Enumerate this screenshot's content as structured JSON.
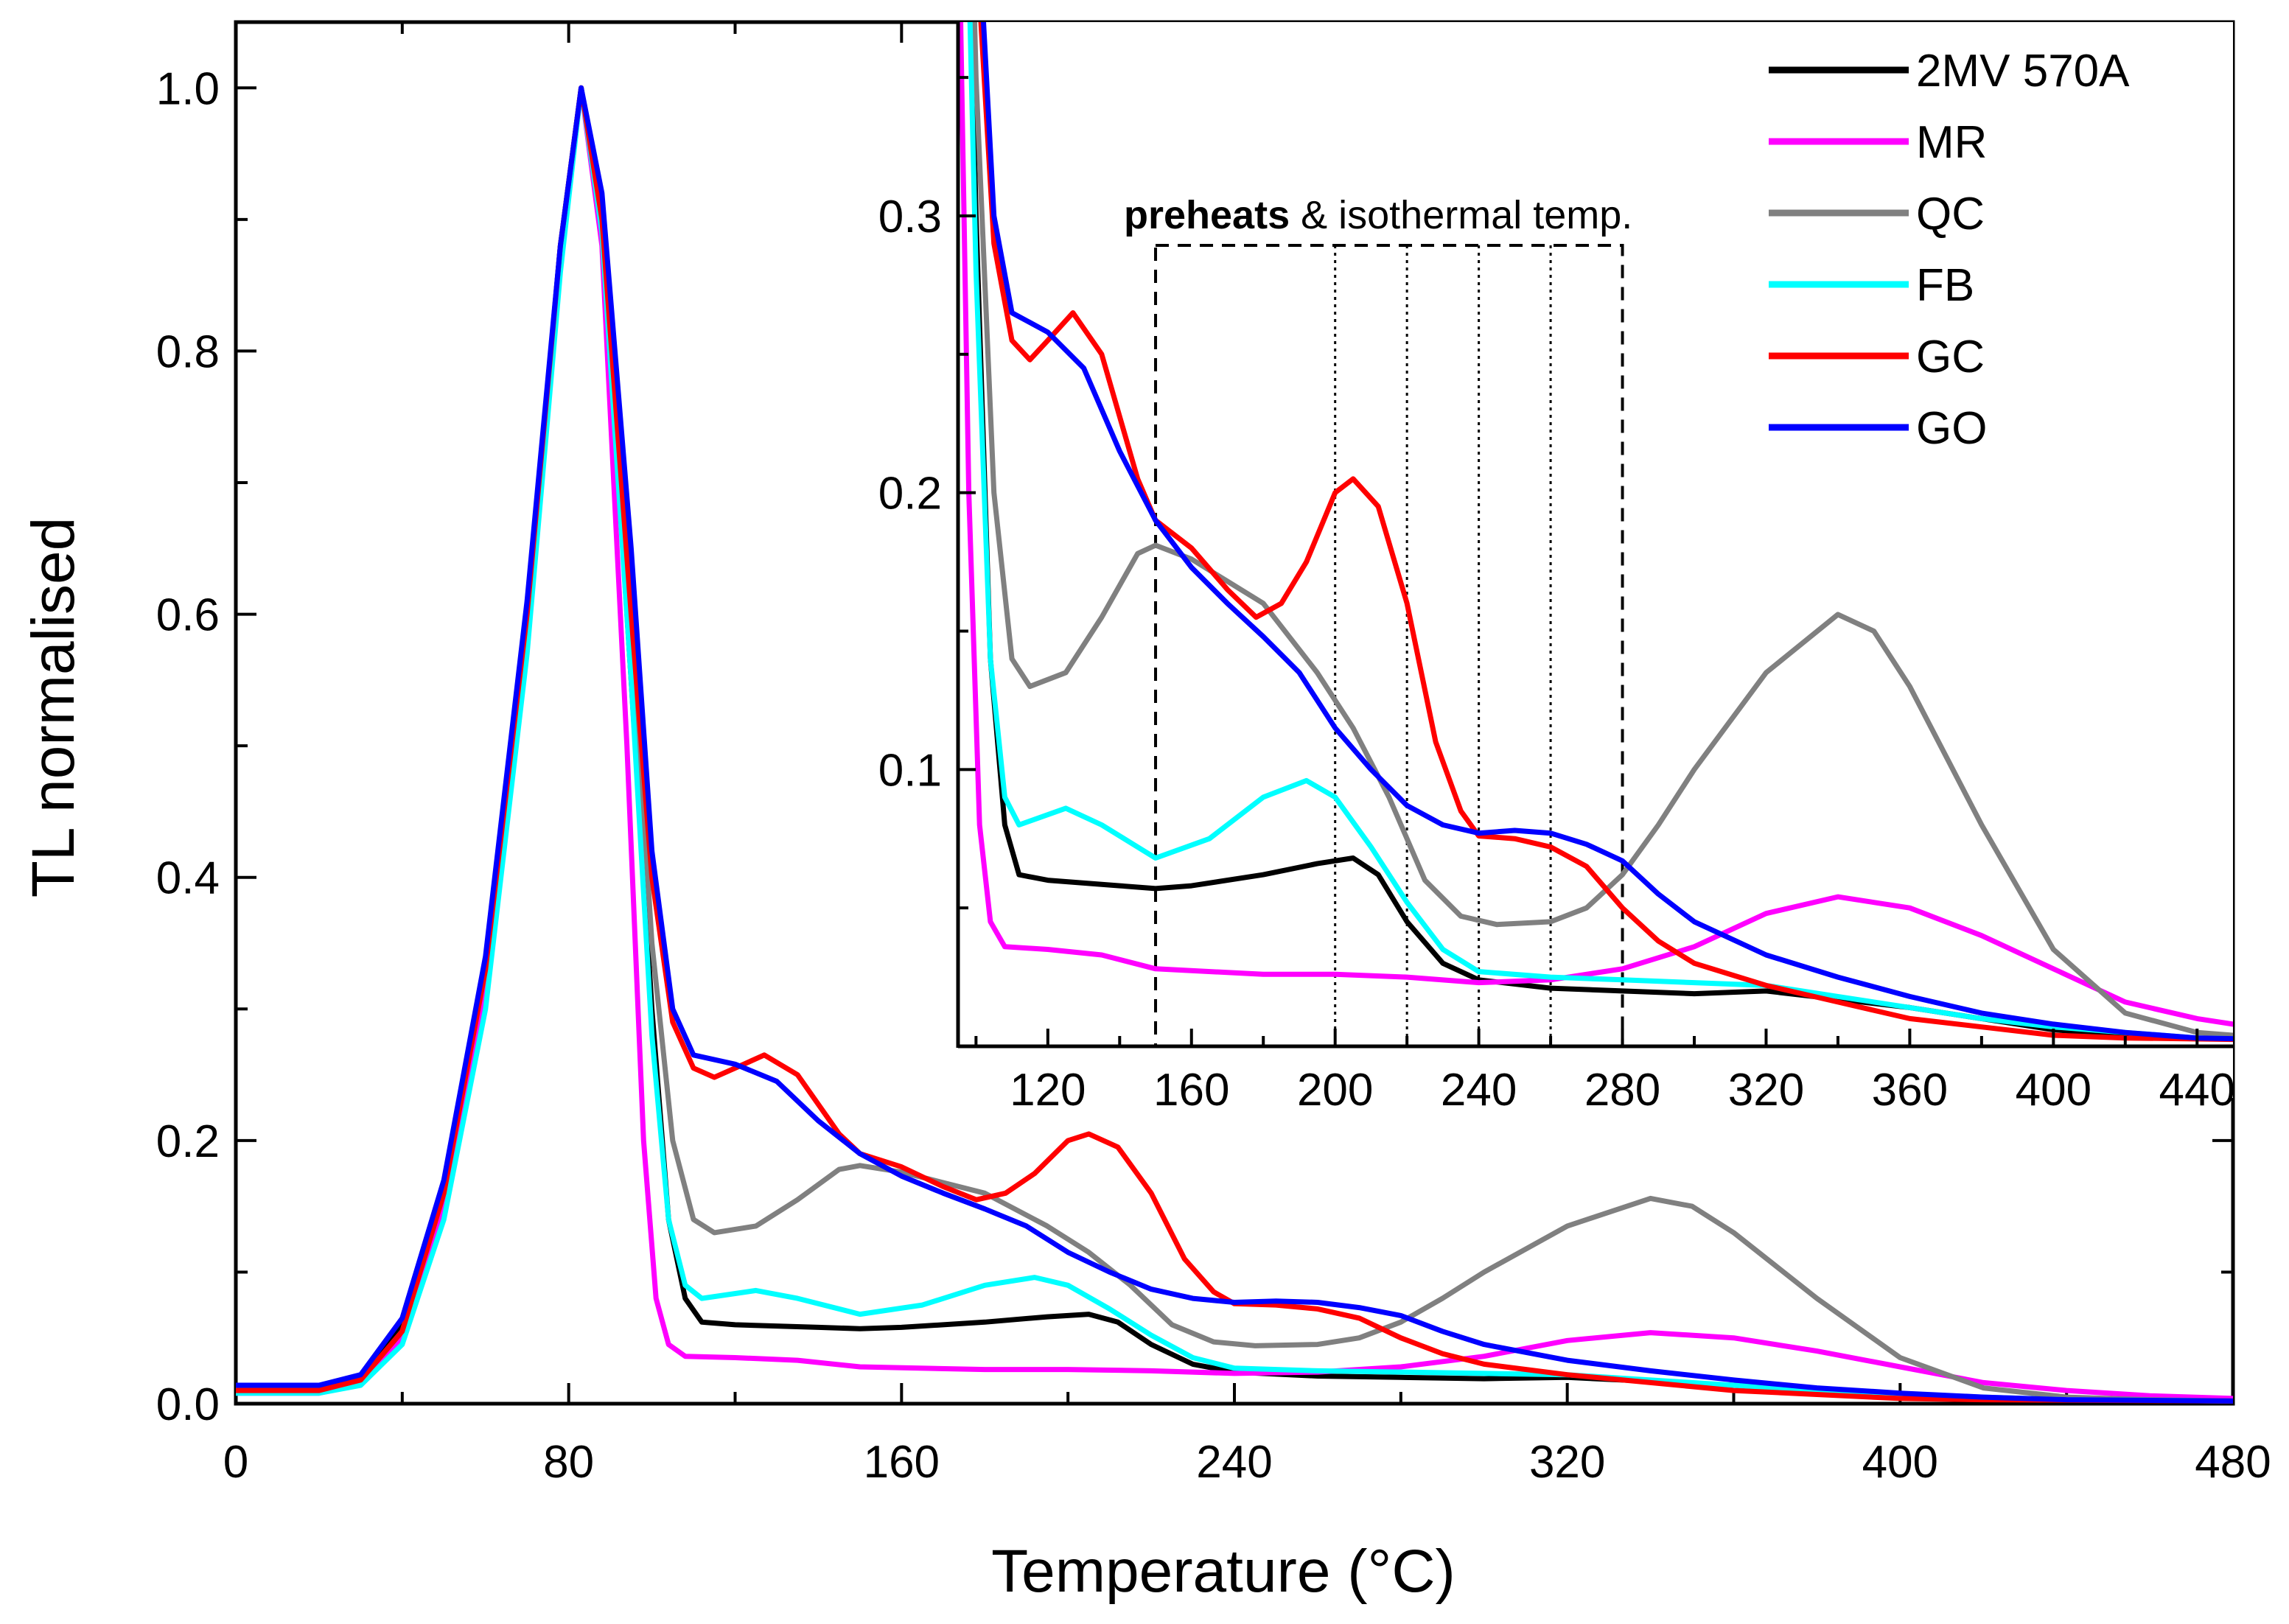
{
  "chart_data": [
    {
      "id": "main",
      "type": "line",
      "xlabel": "Temperature (°C)",
      "ylabel": "TL normalised",
      "xlim": [
        0,
        480
      ],
      "ylim": [
        0,
        1.05
      ],
      "xticks": [
        0,
        80,
        160,
        240,
        320,
        400,
        480
      ],
      "yticks": [
        0.0,
        0.2,
        0.4,
        0.6,
        0.8,
        1.0
      ],
      "ytick_labels": [
        "0.0",
        "0.2",
        "0.4",
        "0.6",
        "0.8",
        "1.0"
      ],
      "series": [
        {
          "name": "2MV 570A",
          "color": "#000000",
          "points": [
            [
              0,
              0.012
            ],
            [
              20,
              0.012
            ],
            [
              30,
              0.02
            ],
            [
              40,
              0.06
            ],
            [
              50,
              0.16
            ],
            [
              60,
              0.33
            ],
            [
              70,
              0.6
            ],
            [
              78,
              0.88
            ],
            [
              83,
              1.0
            ],
            [
              88,
              0.9
            ],
            [
              95,
              0.55
            ],
            [
              100,
              0.3
            ],
            [
              104,
              0.14
            ],
            [
              108,
              0.08
            ],
            [
              112,
              0.062
            ],
            [
              120,
              0.06
            ],
            [
              140,
              0.058
            ],
            [
              150,
              0.057
            ],
            [
              160,
              0.058
            ],
            [
              180,
              0.062
            ],
            [
              195,
              0.066
            ],
            [
              205,
              0.068
            ],
            [
              212,
              0.062
            ],
            [
              220,
              0.045
            ],
            [
              230,
              0.03
            ],
            [
              240,
              0.024
            ],
            [
              260,
              0.021
            ],
            [
              280,
              0.02
            ],
            [
              300,
              0.019
            ],
            [
              320,
              0.02
            ],
            [
              340,
              0.017
            ],
            [
              360,
              0.014
            ],
            [
              380,
              0.01
            ],
            [
              400,
              0.006
            ],
            [
              420,
              0.004
            ],
            [
              440,
              0.003
            ],
            [
              480,
              0.002
            ]
          ]
        },
        {
          "name": "MR",
          "color": "#ff00ff",
          "points": [
            [
              0,
              0.008
            ],
            [
              20,
              0.008
            ],
            [
              30,
              0.015
            ],
            [
              40,
              0.05
            ],
            [
              50,
              0.15
            ],
            [
              60,
              0.32
            ],
            [
              70,
              0.59
            ],
            [
              78,
              0.87
            ],
            [
              83,
              1.0
            ],
            [
              88,
              0.88
            ],
            [
              94,
              0.5
            ],
            [
              98,
              0.2
            ],
            [
              101,
              0.08
            ],
            [
              104,
              0.045
            ],
            [
              108,
              0.036
            ],
            [
              120,
              0.035
            ],
            [
              135,
              0.033
            ],
            [
              150,
              0.028
            ],
            [
              180,
              0.026
            ],
            [
              200,
              0.026
            ],
            [
              220,
              0.025
            ],
            [
              240,
              0.023
            ],
            [
              260,
              0.024
            ],
            [
              280,
              0.028
            ],
            [
              300,
              0.036
            ],
            [
              320,
              0.048
            ],
            [
              340,
              0.054
            ],
            [
              360,
              0.05
            ],
            [
              380,
              0.04
            ],
            [
              400,
              0.028
            ],
            [
              420,
              0.016
            ],
            [
              440,
              0.01
            ],
            [
              460,
              0.006
            ],
            [
              480,
              0.004
            ]
          ]
        },
        {
          "name": "QC",
          "color": "#808080",
          "points": [
            [
              0,
              0.01
            ],
            [
              20,
              0.01
            ],
            [
              30,
              0.018
            ],
            [
              40,
              0.055
            ],
            [
              50,
              0.16
            ],
            [
              60,
              0.33
            ],
            [
              70,
              0.6
            ],
            [
              78,
              0.88
            ],
            [
              83,
              1.0
            ],
            [
              88,
              0.9
            ],
            [
              95,
              0.6
            ],
            [
              100,
              0.35
            ],
            [
              105,
              0.2
            ],
            [
              110,
              0.14
            ],
            [
              115,
              0.13
            ],
            [
              125,
              0.135
            ],
            [
              135,
              0.155
            ],
            [
              145,
              0.178
            ],
            [
              150,
              0.181
            ],
            [
              160,
              0.176
            ],
            [
              170,
              0.168
            ],
            [
              180,
              0.16
            ],
            [
              195,
              0.135
            ],
            [
              205,
              0.115
            ],
            [
              215,
              0.09
            ],
            [
              225,
              0.06
            ],
            [
              235,
              0.047
            ],
            [
              245,
              0.044
            ],
            [
              260,
              0.045
            ],
            [
              270,
              0.05
            ],
            [
              280,
              0.062
            ],
            [
              290,
              0.08
            ],
            [
              300,
              0.1
            ],
            [
              320,
              0.135
            ],
            [
              340,
              0.156
            ],
            [
              350,
              0.15
            ],
            [
              360,
              0.13
            ],
            [
              380,
              0.08
            ],
            [
              400,
              0.035
            ],
            [
              420,
              0.012
            ],
            [
              440,
              0.005
            ],
            [
              460,
              0.003
            ],
            [
              480,
              0.002
            ]
          ]
        },
        {
          "name": "FB",
          "color": "#00ffff",
          "points": [
            [
              0,
              0.008
            ],
            [
              20,
              0.008
            ],
            [
              30,
              0.014
            ],
            [
              40,
              0.045
            ],
            [
              50,
              0.14
            ],
            [
              60,
              0.3
            ],
            [
              70,
              0.57
            ],
            [
              78,
              0.86
            ],
            [
              83,
              1.0
            ],
            [
              88,
              0.89
            ],
            [
              95,
              0.55
            ],
            [
              100,
              0.28
            ],
            [
              104,
              0.14
            ],
            [
              108,
              0.09
            ],
            [
              112,
              0.08
            ],
            [
              125,
              0.086
            ],
            [
              135,
              0.08
            ],
            [
              150,
              0.068
            ],
            [
              165,
              0.075
            ],
            [
              180,
              0.09
            ],
            [
              192,
              0.096
            ],
            [
              200,
              0.09
            ],
            [
              210,
              0.072
            ],
            [
              220,
              0.052
            ],
            [
              230,
              0.035
            ],
            [
              240,
              0.027
            ],
            [
              260,
              0.025
            ],
            [
              280,
              0.024
            ],
            [
              300,
              0.023
            ],
            [
              320,
              0.022
            ],
            [
              340,
              0.018
            ],
            [
              360,
              0.014
            ],
            [
              380,
              0.01
            ],
            [
              400,
              0.007
            ],
            [
              420,
              0.005
            ],
            [
              440,
              0.003
            ],
            [
              480,
              0.002
            ]
          ]
        },
        {
          "name": "GC",
          "color": "#ff0000",
          "points": [
            [
              0,
              0.01
            ],
            [
              20,
              0.01
            ],
            [
              30,
              0.018
            ],
            [
              40,
              0.055
            ],
            [
              50,
              0.16
            ],
            [
              60,
              0.33
            ],
            [
              70,
              0.6
            ],
            [
              78,
              0.88
            ],
            [
              83,
              1.0
            ],
            [
              88,
              0.9
            ],
            [
              95,
              0.6
            ],
            [
              100,
              0.4
            ],
            [
              105,
              0.29
            ],
            [
              110,
              0.255
            ],
            [
              115,
              0.248
            ],
            [
              120,
              0.255
            ],
            [
              127,
              0.265
            ],
            [
              135,
              0.25
            ],
            [
              145,
              0.205
            ],
            [
              150,
              0.19
            ],
            [
              160,
              0.18
            ],
            [
              170,
              0.165
            ],
            [
              178,
              0.155
            ],
            [
              185,
              0.16
            ],
            [
              192,
              0.175
            ],
            [
              200,
              0.2
            ],
            [
              205,
              0.205
            ],
            [
              212,
              0.195
            ],
            [
              220,
              0.16
            ],
            [
              228,
              0.11
            ],
            [
              235,
              0.085
            ],
            [
              240,
              0.076
            ],
            [
              250,
              0.075
            ],
            [
              260,
              0.072
            ],
            [
              270,
              0.065
            ],
            [
              280,
              0.05
            ],
            [
              290,
              0.038
            ],
            [
              300,
              0.03
            ],
            [
              320,
              0.022
            ],
            [
              340,
              0.016
            ],
            [
              360,
              0.01
            ],
            [
              380,
              0.007
            ],
            [
              400,
              0.004
            ],
            [
              420,
              0.003
            ],
            [
              480,
              0.002
            ]
          ]
        },
        {
          "name": "GO",
          "color": "#0000ff",
          "points": [
            [
              0,
              0.014
            ],
            [
              20,
              0.014
            ],
            [
              30,
              0.022
            ],
            [
              40,
              0.065
            ],
            [
              50,
              0.17
            ],
            [
              60,
              0.34
            ],
            [
              70,
              0.61
            ],
            [
              78,
              0.88
            ],
            [
              83,
              1.0
            ],
            [
              88,
              0.92
            ],
            [
              95,
              0.65
            ],
            [
              100,
              0.42
            ],
            [
              105,
              0.3
            ],
            [
              110,
              0.265
            ],
            [
              120,
              0.258
            ],
            [
              130,
              0.245
            ],
            [
              140,
              0.215
            ],
            [
              150,
              0.19
            ],
            [
              160,
              0.173
            ],
            [
              170,
              0.16
            ],
            [
              180,
              0.148
            ],
            [
              190,
              0.135
            ],
            [
              200,
              0.115
            ],
            [
              210,
              0.1
            ],
            [
              220,
              0.087
            ],
            [
              230,
              0.08
            ],
            [
              240,
              0.077
            ],
            [
              250,
              0.078
            ],
            [
              260,
              0.077
            ],
            [
              270,
              0.073
            ],
            [
              280,
              0.067
            ],
            [
              290,
              0.055
            ],
            [
              300,
              0.045
            ],
            [
              320,
              0.033
            ],
            [
              340,
              0.025
            ],
            [
              360,
              0.018
            ],
            [
              380,
              0.012
            ],
            [
              400,
              0.008
            ],
            [
              420,
              0.005
            ],
            [
              440,
              0.003
            ],
            [
              480,
              0.002
            ]
          ]
        }
      ]
    },
    {
      "id": "inset",
      "type": "line",
      "xlabel": "",
      "ylabel": "",
      "xlim": [
        95,
        450
      ],
      "ylim": [
        0,
        0.37
      ],
      "xticks": [
        120,
        160,
        200,
        240,
        280,
        320,
        360,
        400,
        440
      ],
      "yticks": [
        0.1,
        0.2,
        0.3
      ],
      "ytick_labels": [
        "0.1",
        "0.2",
        "0.3"
      ],
      "uses_series_from": "main"
    }
  ],
  "legend": {
    "placement": "top-right",
    "entries": [
      "2MV 570A",
      "MR",
      "QC",
      "FB",
      "GC",
      "GO"
    ]
  },
  "annotation": {
    "bold_text": "preheats",
    "rest_text": " & isothermal temp.",
    "box_range": [
      150,
      280
    ],
    "dotted_lines": [
      200,
      220,
      240,
      260
    ]
  }
}
